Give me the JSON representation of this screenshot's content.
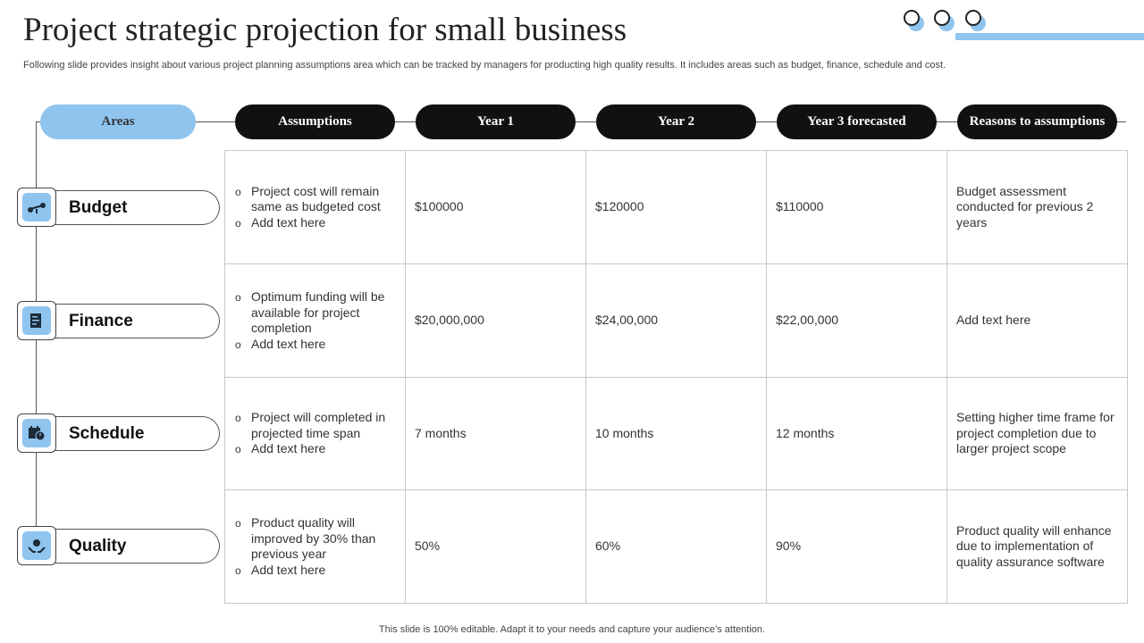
{
  "header": {
    "title": "Project strategic projection for small business",
    "subtitle": "Following slide provides insight about various project planning assumptions area which can be tracked by managers for producting high quality results. It includes areas such as budget, finance, schedule and cost."
  },
  "columns": {
    "areas": "Areas",
    "assumptions": "Assumptions",
    "year1": "Year 1",
    "year2": "Year 2",
    "year3": "Year 3 forecasted",
    "reasons": "Reasons to assumptions"
  },
  "rows": [
    {
      "area": "Budget",
      "icon": "scale-money-icon",
      "assumptions": [
        "Project cost will remain same as budgeted cost",
        "Add text here"
      ],
      "year1": "$100000",
      "year2": "$120000",
      "year3": "$110000",
      "reason": "Budget assessment conducted for previous 2 years"
    },
    {
      "area": "Finance",
      "icon": "finance-document-icon",
      "assumptions": [
        "Optimum funding will be available for project completion",
        "Add text here"
      ],
      "year1": "$20,000,000",
      "year2": "$24,00,000",
      "year3": "$22,00,000",
      "reason": "Add text here"
    },
    {
      "area": "Schedule",
      "icon": "calendar-clock-icon",
      "assumptions": [
        "Project will completed in projected time span",
        "Add text here"
      ],
      "year1": "7 months",
      "year2": "10 months",
      "year3": "12 months",
      "reason": "Setting higher time frame for project completion due to larger project scope"
    },
    {
      "area": "Quality",
      "icon": "quality-hands-icon",
      "assumptions": [
        "Product quality will improved by 30% than previous year",
        "Add text here"
      ],
      "year1": "50%",
      "year2": "60%",
      "year3": "90%",
      "reason": "Product quality will enhance due to implementation of quality assurance software"
    }
  ],
  "footer": "This slide is 100% editable. Adapt it to your needs and capture your audience’s attention.",
  "colors": {
    "accent": "#8fc4ef",
    "dark": "#121010",
    "grid": "#c8c8c8"
  }
}
